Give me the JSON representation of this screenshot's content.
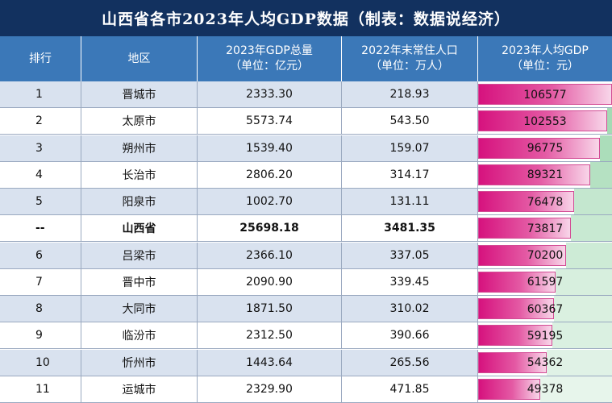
{
  "title": "山西省各市2023年人均GDP数据（制表：数据说经济）",
  "headers": [
    {
      "l1": "排行",
      "l2": ""
    },
    {
      "l1": "地区",
      "l2": ""
    },
    {
      "l1": "2023年GDP总量",
      "l2": "（单位：亿元）"
    },
    {
      "l1": "2022年末常住人口",
      "l2": "（单位：万人）"
    },
    {
      "l1": "2023年人均GDP",
      "l2": "（单位：元）"
    }
  ],
  "rows": [
    {
      "rank": "1",
      "region": "晋城市",
      "gdp": "2333.30",
      "pop": "218.93",
      "pc": 106577,
      "bold": false
    },
    {
      "rank": "2",
      "region": "太原市",
      "gdp": "5573.74",
      "pop": "543.50",
      "pc": 102553,
      "bold": false
    },
    {
      "rank": "3",
      "region": "朔州市",
      "gdp": "1539.40",
      "pop": "159.07",
      "pc": 96775,
      "bold": false
    },
    {
      "rank": "4",
      "region": "长治市",
      "gdp": "2806.20",
      "pop": "314.17",
      "pc": 89321,
      "bold": false
    },
    {
      "rank": "5",
      "region": "阳泉市",
      "gdp": "1002.70",
      "pop": "131.11",
      "pc": 76478,
      "bold": false
    },
    {
      "rank": "--",
      "region": "山西省",
      "gdp": "25698.18",
      "pop": "3481.35",
      "pc": 73817,
      "bold": true
    },
    {
      "rank": "6",
      "region": "吕梁市",
      "gdp": "2366.10",
      "pop": "337.05",
      "pc": 70200,
      "bold": false
    },
    {
      "rank": "7",
      "region": "晋中市",
      "gdp": "2090.90",
      "pop": "339.45",
      "pc": 61597,
      "bold": false
    },
    {
      "rank": "8",
      "region": "大同市",
      "gdp": "1871.50",
      "pop": "310.02",
      "pc": 60367,
      "bold": false
    },
    {
      "rank": "9",
      "region": "临汾市",
      "gdp": "2312.50",
      "pop": "390.66",
      "pc": 59195,
      "bold": false
    },
    {
      "rank": "10",
      "region": "忻州市",
      "gdp": "1443.64",
      "pop": "265.56",
      "pc": 54362,
      "bold": false
    },
    {
      "rank": "11",
      "region": "运城市",
      "gdp": "2329.90",
      "pop": "471.85",
      "pc": 49378,
      "bold": false
    }
  ],
  "colors": {
    "title_bg": "#12315f",
    "header_bg": "#3b78b8",
    "row_band": "#d9e2ef",
    "bar_start": "#d6127e",
    "bar_end": "#f8d6e9",
    "green_fill": "#9fd8b0"
  }
}
